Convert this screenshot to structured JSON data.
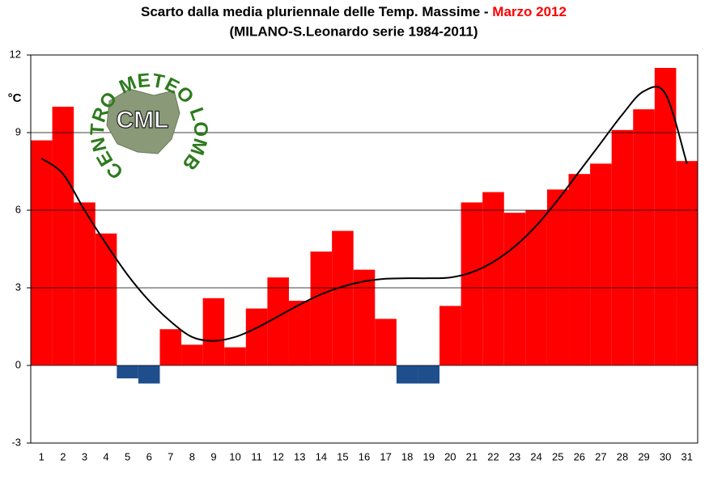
{
  "chart_data": {
    "type": "bar",
    "title": "Scarto dalla media pluriennale delle Temp. Massime - ",
    "title_highlight": "Marzo 2012",
    "subtitle": "(MILANO-S.Leonardo serie 1984-2011)",
    "y_label": "°C",
    "logo": {
      "text": "CENTRO METEO LOMBARDO",
      "abbr": "CML"
    },
    "categories": [
      "1",
      "2",
      "3",
      "4",
      "5",
      "6",
      "7",
      "8",
      "9",
      "10",
      "11",
      "12",
      "13",
      "14",
      "15",
      "16",
      "17",
      "18",
      "19",
      "20",
      "21",
      "22",
      "23",
      "24",
      "25",
      "26",
      "27",
      "28",
      "29",
      "30",
      "31"
    ],
    "values": [
      8.7,
      10.0,
      6.3,
      5.1,
      -0.5,
      -0.7,
      1.4,
      0.8,
      2.6,
      0.7,
      2.2,
      3.4,
      2.5,
      4.4,
      5.2,
      3.7,
      1.8,
      -0.7,
      -0.7,
      2.3,
      6.3,
      6.7,
      5.9,
      6.0,
      6.8,
      7.4,
      7.8,
      9.1,
      9.9,
      11.5,
      7.9
    ],
    "trend": [
      8.0,
      7.4,
      6.0,
      4.7,
      3.5,
      2.5,
      1.7,
      1.1,
      0.95,
      1.1,
      1.45,
      1.9,
      2.35,
      2.75,
      3.05,
      3.25,
      3.35,
      3.37,
      3.37,
      3.4,
      3.6,
      4.0,
      4.6,
      5.4,
      6.4,
      7.5,
      8.6,
      9.7,
      10.6,
      10.5,
      7.8
    ],
    "color": "#ff0000",
    "negative_color": "#1f4e8c",
    "trend_color": "#000000",
    "ylim": [
      -3,
      12
    ],
    "yticks": [
      -3,
      0,
      3,
      6,
      9,
      12
    ],
    "grid": true
  }
}
